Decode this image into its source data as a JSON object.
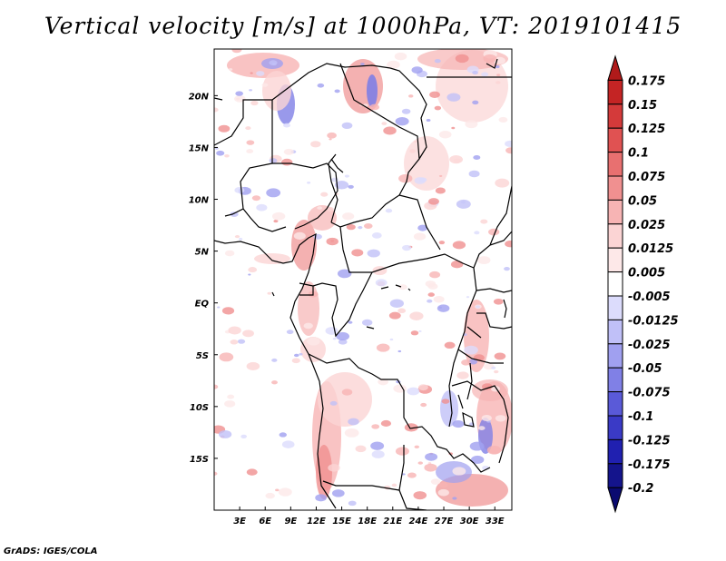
{
  "title": "Vertical velocity [m/s] at 1000hPa, VT: 2019101415",
  "footer": "GrADS: IGES/COLA",
  "map": {
    "lat_labels": [
      "20N",
      "15N",
      "10N",
      "5N",
      "EQ",
      "5S",
      "10S",
      "15S"
    ],
    "lon_labels": [
      "3E",
      "6E",
      "9E",
      "12E",
      "15E",
      "18E",
      "21E",
      "24E",
      "27E",
      "30E",
      "33E"
    ],
    "lon_range": [
      0,
      35
    ],
    "lat_range": [
      -20,
      24.5
    ]
  },
  "colorbar": {
    "levels": [
      "0.175",
      "0.15",
      "0.125",
      "0.1",
      "0.075",
      "0.05",
      "0.025",
      "0.0125",
      "0.005",
      "-0.005",
      "-0.0125",
      "-0.025",
      "-0.05",
      "-0.075",
      "-0.1",
      "-0.125",
      "-0.175",
      "-0.2"
    ],
    "colors": [
      "#b01a1a",
      "#c42424",
      "#d43a3a",
      "#e05252",
      "#e87070",
      "#f09090",
      "#f7b4b4",
      "#fbd4d4",
      "#fde8e8",
      "#ffffff",
      "#dcdcfc",
      "#c0c0f8",
      "#a0a0f0",
      "#8080e6",
      "#5a5ad8",
      "#3a3ac6",
      "#2020b0",
      "#14148c",
      "#0a0a70"
    ]
  }
}
